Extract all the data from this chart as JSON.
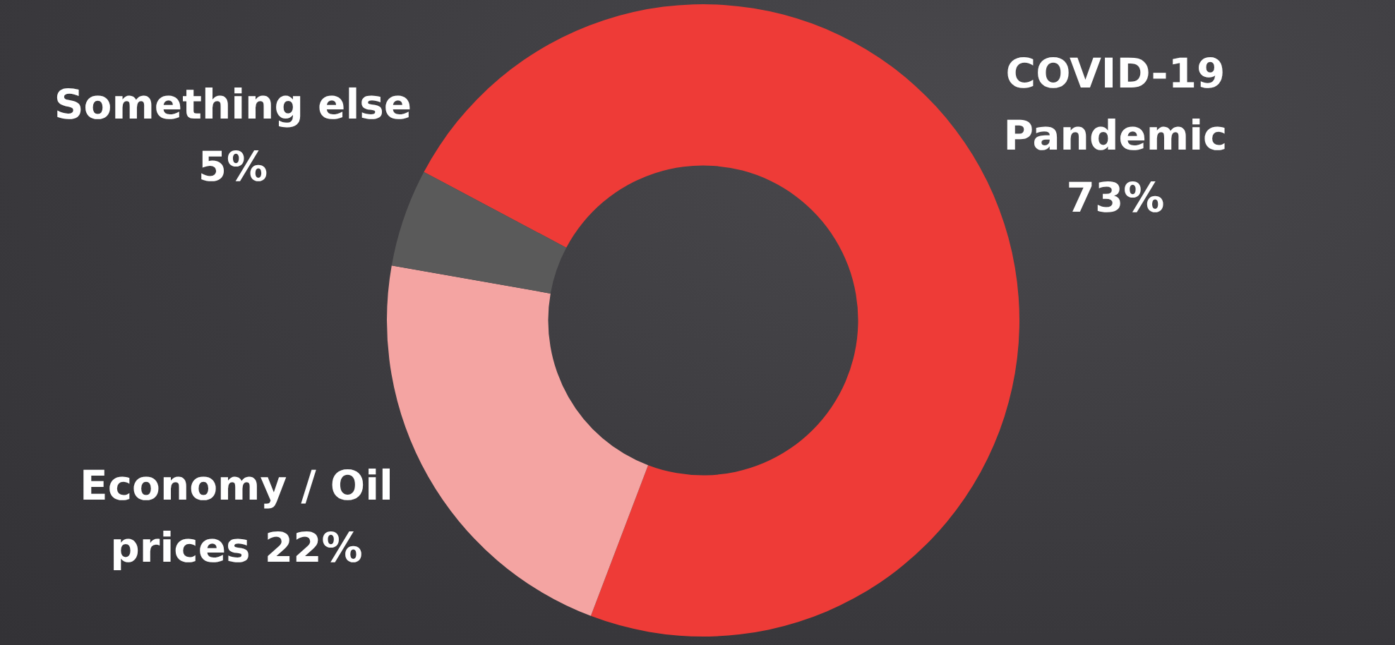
{
  "chart_data": {
    "type": "donut",
    "categories": [
      "COVID-19 Pandemic",
      "Economy / Oil prices",
      "Something else"
    ],
    "values": [
      73,
      22,
      5
    ],
    "colors": [
      "#ee3b37",
      "#f4a4a2",
      "#5a5a5a"
    ],
    "value_labels": [
      "73%",
      "22%",
      "5%"
    ],
    "legend": false
  }
}
